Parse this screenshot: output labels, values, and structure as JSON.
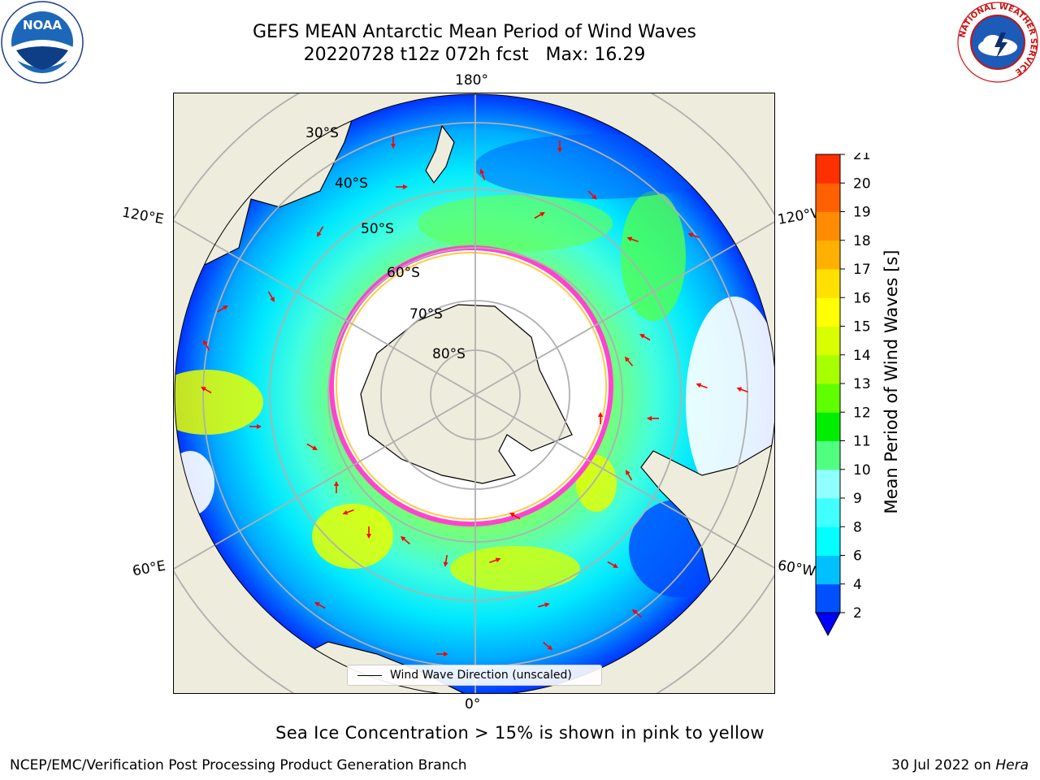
{
  "header": {
    "title_line1": "GEFS MEAN Antarctic Mean Period of Wind Waves",
    "title_line2": "20220728 t12z 072h fcst   Max: 16.29"
  },
  "logos": {
    "noaa": "NOAA",
    "nws_ring": "NATIONAL WEATHER SERVICE"
  },
  "map": {
    "projection": "south polar stereographic",
    "lon_labels": {
      "top": "180°",
      "bottom": "0°",
      "left_upper": "120°E",
      "left_lower": "60°E",
      "right_upper": "120°W",
      "right_lower": "60°W"
    },
    "lat_labels": [
      "30°S",
      "40°S",
      "50°S",
      "60°S",
      "70°S",
      "80°S"
    ],
    "legend_label": "Wind Wave Direction (unscaled)",
    "colors": {
      "land": "#eeecdc",
      "ocean_low": "#0000ff",
      "sea_ice": "#ff44cc",
      "arrows": "#ff0000",
      "grid": "#b0b0b0"
    }
  },
  "colorbar": {
    "title": "Mean Period of Wind Waves [s]",
    "tick_labels": [
      "2",
      "4",
      "6",
      "8",
      "9",
      "10",
      "11",
      "12",
      "13",
      "14",
      "15",
      "16",
      "17",
      "18",
      "19",
      "20",
      "21"
    ],
    "colors": [
      "#0050ff",
      "#00c0ff",
      "#00ffff",
      "#40ffff",
      "#90ffff",
      "#50ff80",
      "#00ee00",
      "#60ff00",
      "#a8ff00",
      "#d8ff00",
      "#ffff00",
      "#ffe000",
      "#ffb000",
      "#ff8c00",
      "#ff6000",
      "#ff3000",
      "#ff0000"
    ],
    "extend_color": "#0000ff"
  },
  "caption": "Sea Ice Concentration > 15% is shown in pink to yellow",
  "footer": {
    "left": "NCEP/EMC/Verification Post Processing Product Generation Branch",
    "right_date": "30 Jul 2022 on ",
    "right_host": "Hera"
  }
}
